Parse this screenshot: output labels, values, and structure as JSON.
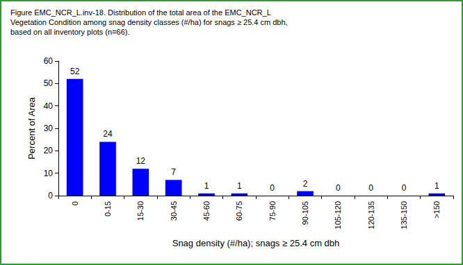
{
  "chart_data": {
    "type": "bar",
    "title": "Figure EMC_NCR_L.inv-18. Distribution of the total area of the EMC_NCR_L\nVegetation Condition among snag density classes (#/ha) for snags ≥ 25.4 cm dbh,\nbased on all inventory plots (n=66).",
    "x_label": "Snag density (#/ha); snags ≥ 25.4 cm dbh",
    "y_label": "Percent of Area",
    "categories": [
      "0",
      "0-15",
      "15-30",
      "30-45",
      "45-60",
      "60-75",
      "75-90",
      "90-105",
      "105-120",
      "120-135",
      "135-150",
      ">150"
    ],
    "values": [
      52,
      24,
      12,
      7,
      1,
      1,
      0,
      2,
      0,
      0,
      0,
      1
    ],
    "color": "#0000ff",
    "ylim": [
      0,
      60
    ],
    "yticks": [
      0,
      10,
      20,
      30,
      40,
      50,
      60
    ],
    "grid": false,
    "data_labels": true
  }
}
